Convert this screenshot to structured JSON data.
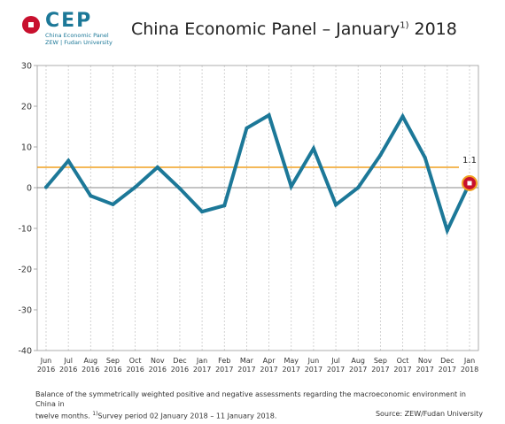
{
  "logo": {
    "text": "CEP",
    "sub1": "China Economic Panel",
    "sub2": "ZEW | Fudan University"
  },
  "title_main": "China Economic Panel – January",
  "title_sup": "1)",
  "title_year": " 2018",
  "caption": {
    "line1": "Balance of the symmetrically weighted positive and negative assessments regarding the macroeconomic environment in China in",
    "line2_a": "twelve months. ",
    "line2_sup": "1)",
    "line2_b": "Survey period 02 January 2018 – 11 January 2018.",
    "source": "Source: ZEW/Fudan University"
  },
  "colors": {
    "line": "#1c7898",
    "reference": "#f0a020",
    "zero": "#888888",
    "marker": "#c8102e"
  },
  "chart_data": {
    "type": "line",
    "categories": [
      [
        "Jun",
        "2016"
      ],
      [
        "Jul",
        "2016"
      ],
      [
        "Aug",
        "2016"
      ],
      [
        "Sep",
        "2016"
      ],
      [
        "Oct",
        "2016"
      ],
      [
        "Nov",
        "2016"
      ],
      [
        "Dec",
        "2016"
      ],
      [
        "Jan",
        "2017"
      ],
      [
        "Feb",
        "2017"
      ],
      [
        "Mar",
        "2017"
      ],
      [
        "Apr",
        "2017"
      ],
      [
        "May",
        "2017"
      ],
      [
        "Jun",
        "2017"
      ],
      [
        "Jul",
        "2017"
      ],
      [
        "Aug",
        "2017"
      ],
      [
        "Sep",
        "2017"
      ],
      [
        "Oct",
        "2017"
      ],
      [
        "Nov",
        "2017"
      ],
      [
        "Dec",
        "2017"
      ],
      [
        "Jan",
        "2018"
      ]
    ],
    "values": [
      0.1,
      6.6,
      -2.0,
      -4.1,
      0.1,
      5.0,
      -0.2,
      -5.9,
      -4.4,
      14.6,
      17.8,
      0.3,
      9.6,
      -4.2,
      0.0,
      8.0,
      17.5,
      7.4,
      -10.5,
      1.1
    ],
    "ylim": [
      -40,
      30
    ],
    "yticks": [
      30,
      20,
      10,
      0,
      -10,
      -20,
      -30,
      -40
    ],
    "reference_value": 5,
    "last_label": "1.1",
    "grid": "vertical dashed"
  }
}
